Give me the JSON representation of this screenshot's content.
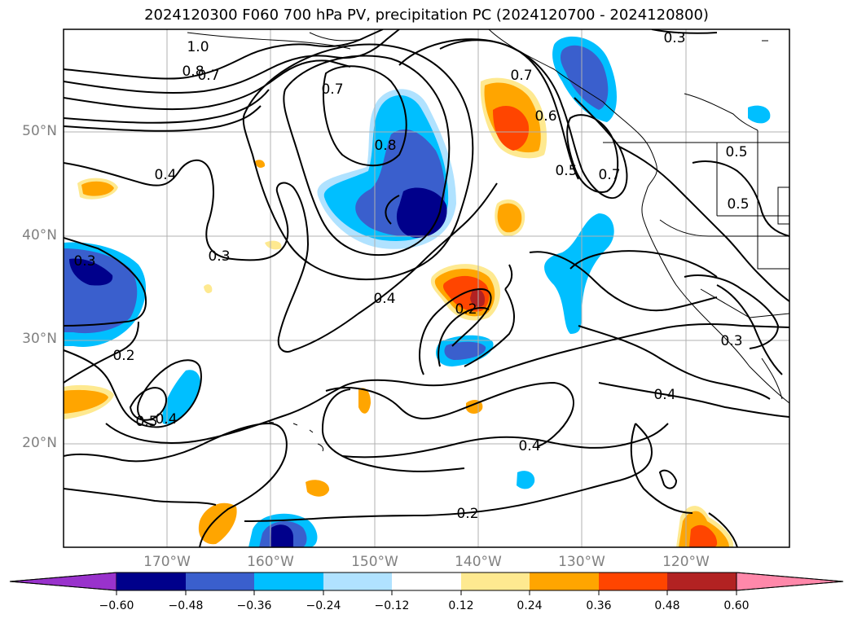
{
  "title": "2024120300 F060 700 hPa PV, precipitation PC (2024120700 - 2024120800)",
  "latitude_labels": [
    "50°N",
    "40°N",
    "30°N",
    "20°N"
  ],
  "longitude_labels": [
    "170°W",
    "160°W",
    "150°W",
    "140°W",
    "130°W",
    "120°W"
  ],
  "contour_labels": [
    "1.0",
    "0.8",
    "0.7",
    "0.7",
    "0.8",
    "0.7",
    "0.6",
    "0.5",
    "0.7",
    "0.3",
    "0.5",
    "0.5",
    "0.4",
    "0.3",
    "0.3",
    "0.4",
    "0.2",
    "0.2",
    "0.3",
    "0.4",
    "0.4",
    "0.5",
    "0.4",
    "0.2"
  ],
  "colorbar": {
    "ticks": [
      "−0.60",
      "−0.48",
      "−0.36",
      "−0.24",
      "−0.12",
      "0.12",
      "0.24",
      "0.36",
      "0.48",
      "0.60"
    ],
    "colors": [
      "#9932cc",
      "#00008b",
      "#3a5fcd",
      "#00bfff",
      "#b0e2ff",
      "#ffffff",
      "#fee990",
      "#ffa500",
      "#ff4500",
      "#b22222",
      "#ff88aa"
    ]
  },
  "colors": {
    "neg_strong": "#00008b",
    "neg_mid": "#3a5fcd",
    "neg_light": "#00bfff",
    "neg_pale": "#b0e2ff",
    "pos_pale": "#fee990",
    "pos_light": "#ffa500",
    "pos_mid": "#ff4500",
    "pos_strong": "#b22222"
  }
}
